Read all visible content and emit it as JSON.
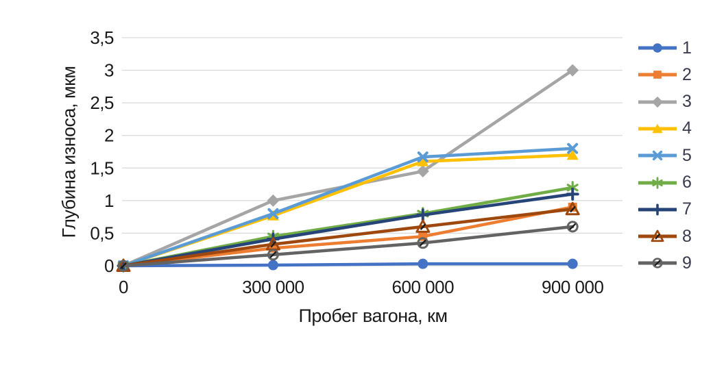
{
  "chart_data": {
    "type": "line",
    "title": "",
    "xlabel": "Пробег вагона, км",
    "ylabel": "Глубина износа, мкм",
    "x": [
      0,
      300000,
      600000,
      900000
    ],
    "x_tick_labels": [
      "0",
      "300 000",
      "600 000",
      "900 000"
    ],
    "y_ticks": [
      0,
      0.5,
      1,
      1.5,
      2,
      2.5,
      3,
      3.5
    ],
    "y_tick_labels": [
      "0",
      "0,5",
      "1",
      "1,5",
      "2",
      "2,5",
      "3",
      "3,5"
    ],
    "xlim": [
      0,
      1000000
    ],
    "ylim": [
      0,
      3.5
    ],
    "grid": "horizontal",
    "gridline_color": "#D9D9D9",
    "text_color": "#1A1A1A",
    "legend_position": "right",
    "legend_labels": [
      "1",
      "2",
      "3",
      "4",
      "5",
      "6",
      "7",
      "8",
      "9"
    ],
    "series": [
      {
        "name": "1",
        "color": "#4472C4",
        "marker": "circle",
        "values": [
          0,
          0.01,
          0.03,
          0.03
        ]
      },
      {
        "name": "2",
        "color": "#ED7D31",
        "marker": "square",
        "values": [
          0,
          0.27,
          0.45,
          0.9
        ]
      },
      {
        "name": "3",
        "color": "#A5A5A5",
        "marker": "diamond",
        "values": [
          0,
          1.0,
          1.45,
          3.0
        ]
      },
      {
        "name": "4",
        "color": "#FFC000",
        "marker": "triangle",
        "values": [
          0,
          0.77,
          1.6,
          1.7
        ]
      },
      {
        "name": "5",
        "color": "#5B9BD5",
        "marker": "x",
        "values": [
          0,
          0.8,
          1.67,
          1.8
        ]
      },
      {
        "name": "6",
        "color": "#70AD47",
        "marker": "asterisk",
        "values": [
          0,
          0.45,
          0.8,
          1.2
        ]
      },
      {
        "name": "7",
        "color": "#264478",
        "marker": "plus",
        "values": [
          0,
          0.41,
          0.78,
          1.1
        ]
      },
      {
        "name": "8",
        "color": "#9E480E",
        "marker": "triangle-open",
        "values": [
          0,
          0.33,
          0.6,
          0.87
        ]
      },
      {
        "name": "9",
        "color": "#636363",
        "marker": "circle-slash",
        "values": [
          0,
          0.17,
          0.35,
          0.6
        ]
      }
    ]
  }
}
